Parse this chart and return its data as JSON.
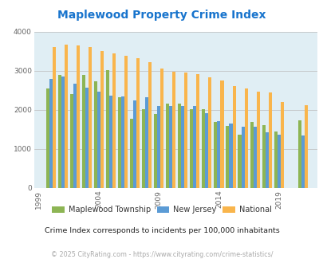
{
  "title": "Maplewood Property Crime Index",
  "title_color": "#1874CD",
  "background_plot": "#E0EEF4",
  "background_fig": "#FFFFFF",
  "ylim": [
    0,
    4000
  ],
  "yticks": [
    0,
    1000,
    2000,
    3000,
    4000
  ],
  "years": [
    2000,
    2001,
    2002,
    2003,
    2004,
    2005,
    2006,
    2007,
    2008,
    2009,
    2010,
    2011,
    2012,
    2013,
    2014,
    2015,
    2016,
    2017,
    2018,
    2019,
    2021
  ],
  "xtick_labels": [
    "1999",
    "2004",
    "2009",
    "2014",
    "2019"
  ],
  "xtick_positions": [
    1999,
    2004,
    2009,
    2014,
    2019
  ],
  "maplewood": [
    2550,
    2900,
    2400,
    2900,
    2730,
    3020,
    2320,
    1780,
    2020,
    1900,
    2160,
    2150,
    2010,
    2020,
    1700,
    1580,
    1360,
    1680,
    1610,
    1440,
    1730
  ],
  "new_jersey": [
    2780,
    2850,
    2660,
    2560,
    2460,
    2360,
    2340,
    2240,
    2320,
    2100,
    2100,
    2090,
    2100,
    1910,
    1720,
    1640,
    1570,
    1560,
    1430,
    1360,
    1350
  ],
  "national": [
    3610,
    3660,
    3640,
    3600,
    3510,
    3450,
    3380,
    3320,
    3210,
    3060,
    2970,
    2960,
    2920,
    2840,
    2750,
    2610,
    2540,
    2470,
    2440,
    2200,
    2110
  ],
  "color_maplewood": "#8DB554",
  "color_nj": "#5B9BD5",
  "color_national": "#F9B54C",
  "bar_width": 0.27,
  "legend_labels": [
    "Maplewood Township",
    "New Jersey",
    "National"
  ],
  "note": "Crime Index corresponds to incidents per 100,000 inhabitants",
  "note_color": "#222222",
  "footer": "© 2025 CityRating.com - https://www.cityrating.com/crime-statistics/",
  "footer_color": "#AAAAAA",
  "grid_color": "#BBBBBB",
  "xlim_left": 1998.6,
  "xlim_right": 2022.2
}
